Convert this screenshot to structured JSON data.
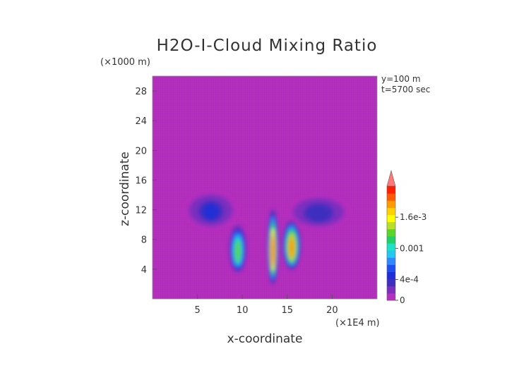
{
  "chart_data": {
    "type": "heatmap",
    "title": "H2O-I-Cloud Mixing Ratio",
    "xlabel": "x-coordinate",
    "ylabel": "z-coordinate",
    "x_unit": "(×1E4 m)",
    "y_unit": "(×1000 m)",
    "annotations": [
      "y=100 m",
      "t=5700 sec"
    ],
    "xlim": [
      0,
      25
    ],
    "ylim": [
      0,
      30
    ],
    "x_ticks": [
      5,
      10,
      15,
      20
    ],
    "y_ticks": [
      4,
      8,
      12,
      16,
      20,
      24,
      28
    ],
    "colorbar": {
      "range": [
        0,
        0.0022
      ],
      "tick_labels": [
        "0",
        "4e-4",
        "0.001",
        "1.6e-3"
      ],
      "tick_values": [
        0,
        0.0004,
        0.001,
        0.0016
      ],
      "extend": "max",
      "colors": [
        "#b52fbf",
        "#7a2fbf",
        "#3e2fbf",
        "#1e2fd8",
        "#1f4ff0",
        "#2f88ff",
        "#22c8f0",
        "#1fe0c8",
        "#22d06a",
        "#5ad62a",
        "#b6e02a",
        "#ffff00",
        "#ffd200",
        "#ff9a00",
        "#ff5a00",
        "#ff1e00",
        "#f77"
      ]
    },
    "background_color": "#b52fbf",
    "features": [
      {
        "name": "anvil-left",
        "x": [
          3.5,
          9.5
        ],
        "z": [
          9.5,
          14.5
        ],
        "peak": 0.00035
      },
      {
        "name": "anvil-right",
        "x": [
          15,
          22
        ],
        "z": [
          9.5,
          14
        ],
        "peak": 0.0003
      },
      {
        "name": "core-left",
        "x": [
          8.5,
          10.5
        ],
        "z": [
          3.5,
          10
        ],
        "peak": 0.0013
      },
      {
        "name": "core-center",
        "x": [
          12.8,
          14
        ],
        "z": [
          2,
          12
        ],
        "peak": 0.0019
      },
      {
        "name": "core-right",
        "x": [
          14.5,
          16.5
        ],
        "z": [
          4,
          10.5
        ],
        "peak": 0.0018
      }
    ]
  }
}
